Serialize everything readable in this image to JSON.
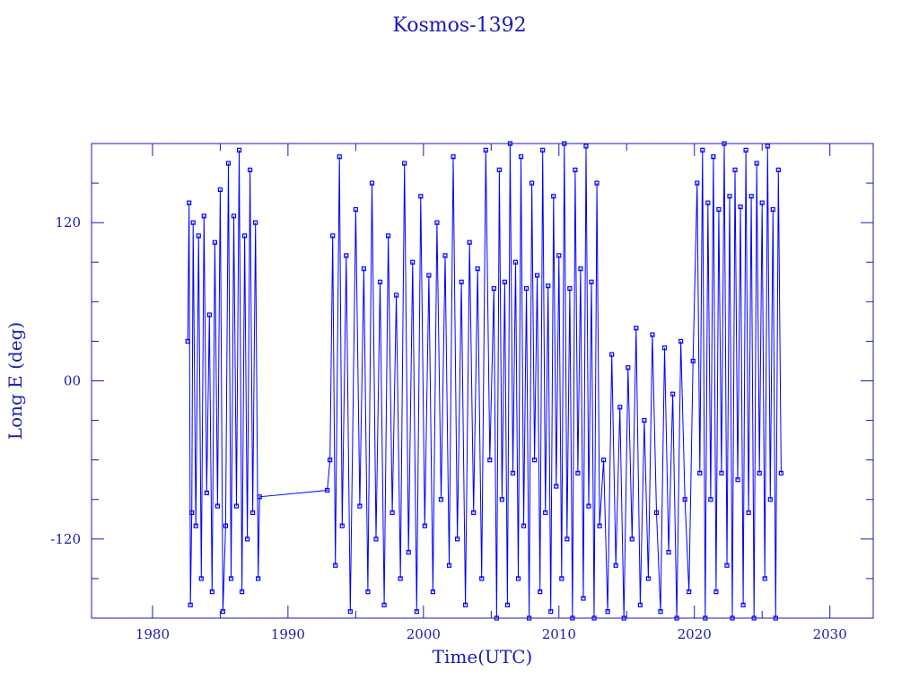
{
  "chart_data": {
    "type": "line",
    "title": "Kosmos-1392",
    "xlabel": "Time(UTC)",
    "ylabel": "Long E (deg)",
    "xlim": [
      1975.5,
      2033.2
    ],
    "ylim": [
      -180,
      180
    ],
    "xticks": [
      1980,
      1990,
      2000,
      2010,
      2020,
      2030
    ],
    "xtick_labels": [
      "1980",
      "1990",
      "2000",
      "2010",
      "2020",
      "2030"
    ],
    "yticks": [
      120,
      0,
      -120
    ],
    "ytick_labels": [
      "120",
      "00",
      "-120"
    ],
    "yminor_step": 30,
    "xminor_step": 5,
    "grid": false,
    "marker": "square",
    "color": "#0000ff",
    "axis_color": "#1a1ab4",
    "points": [
      [
        1982.6,
        30
      ],
      [
        1982.7,
        135
      ],
      [
        1982.8,
        -170
      ],
      [
        1982.9,
        -100
      ],
      [
        1983.0,
        120
      ],
      [
        1983.2,
        -110
      ],
      [
        1983.4,
        110
      ],
      [
        1983.6,
        -150
      ],
      [
        1983.8,
        125
      ],
      [
        1984.0,
        -85
      ],
      [
        1984.2,
        50
      ],
      [
        1984.4,
        -160
      ],
      [
        1984.6,
        105
      ],
      [
        1984.8,
        -95
      ],
      [
        1985.0,
        145
      ],
      [
        1985.2,
        -175
      ],
      [
        1985.4,
        -110
      ],
      [
        1985.6,
        165
      ],
      [
        1985.8,
        -150
      ],
      [
        1986.0,
        125
      ],
      [
        1986.2,
        -95
      ],
      [
        1986.4,
        175
      ],
      [
        1986.6,
        -160
      ],
      [
        1986.8,
        110
      ],
      [
        1987.0,
        -120
      ],
      [
        1987.2,
        160
      ],
      [
        1987.4,
        -100
      ],
      [
        1987.6,
        120
      ],
      [
        1987.8,
        -150
      ],
      [
        1987.9,
        -88
      ],
      [
        1992.9,
        -83
      ],
      [
        1993.1,
        -60
      ],
      [
        1993.3,
        110
      ],
      [
        1993.5,
        -140
      ],
      [
        1993.8,
        170
      ],
      [
        1994.0,
        -110
      ],
      [
        1994.3,
        95
      ],
      [
        1994.6,
        -175
      ],
      [
        1995.0,
        130
      ],
      [
        1995.3,
        -95
      ],
      [
        1995.6,
        85
      ],
      [
        1995.9,
        -160
      ],
      [
        1996.2,
        150
      ],
      [
        1996.5,
        -120
      ],
      [
        1996.8,
        75
      ],
      [
        1997.1,
        -170
      ],
      [
        1997.4,
        110
      ],
      [
        1997.7,
        -100
      ],
      [
        1998.0,
        65
      ],
      [
        1998.3,
        -150
      ],
      [
        1998.6,
        165
      ],
      [
        1998.9,
        -130
      ],
      [
        1999.2,
        90
      ],
      [
        1999.5,
        -175
      ],
      [
        1999.8,
        140
      ],
      [
        2000.1,
        -110
      ],
      [
        2000.4,
        80
      ],
      [
        2000.7,
        -160
      ],
      [
        2001.0,
        120
      ],
      [
        2001.3,
        -90
      ],
      [
        2001.6,
        95
      ],
      [
        2001.9,
        -140
      ],
      [
        2002.2,
        170
      ],
      [
        2002.5,
        -120
      ],
      [
        2002.8,
        75
      ],
      [
        2003.1,
        -170
      ],
      [
        2003.4,
        105
      ],
      [
        2003.7,
        -100
      ],
      [
        2004.0,
        85
      ],
      [
        2004.3,
        -150
      ],
      [
        2004.6,
        175
      ],
      [
        2004.9,
        -60
      ],
      [
        2005.2,
        70
      ],
      [
        2005.4,
        -180
      ],
      [
        2005.6,
        160
      ],
      [
        2005.8,
        -90
      ],
      [
        2006.0,
        75
      ],
      [
        2006.2,
        -170
      ],
      [
        2006.4,
        180
      ],
      [
        2006.6,
        -70
      ],
      [
        2006.8,
        90
      ],
      [
        2007.0,
        -150
      ],
      [
        2007.2,
        170
      ],
      [
        2007.4,
        -110
      ],
      [
        2007.6,
        70
      ],
      [
        2007.8,
        -180
      ],
      [
        2008.0,
        150
      ],
      [
        2008.2,
        -60
      ],
      [
        2008.4,
        80
      ],
      [
        2008.6,
        -160
      ],
      [
        2008.8,
        175
      ],
      [
        2009.0,
        -100
      ],
      [
        2009.2,
        72
      ],
      [
        2009.4,
        -175
      ],
      [
        2009.6,
        140
      ],
      [
        2009.8,
        -80
      ],
      [
        2010.0,
        95
      ],
      [
        2010.2,
        -150
      ],
      [
        2010.4,
        180
      ],
      [
        2010.6,
        -120
      ],
      [
        2010.8,
        70
      ],
      [
        2011.0,
        -180
      ],
      [
        2011.2,
        160
      ],
      [
        2011.4,
        -70
      ],
      [
        2011.6,
        85
      ],
      [
        2011.8,
        -165
      ],
      [
        2012.0,
        178
      ],
      [
        2012.2,
        -95
      ],
      [
        2012.4,
        75
      ],
      [
        2012.6,
        -180
      ],
      [
        2012.8,
        150
      ],
      [
        2013.0,
        -110
      ],
      [
        2013.3,
        -60
      ],
      [
        2013.6,
        -175
      ],
      [
        2013.9,
        20
      ],
      [
        2014.2,
        -140
      ],
      [
        2014.5,
        -20
      ],
      [
        2014.8,
        -180
      ],
      [
        2015.1,
        10
      ],
      [
        2015.4,
        -120
      ],
      [
        2015.7,
        40
      ],
      [
        2016.0,
        -170
      ],
      [
        2016.3,
        -30
      ],
      [
        2016.6,
        -150
      ],
      [
        2016.9,
        35
      ],
      [
        2017.2,
        -100
      ],
      [
        2017.5,
        -175
      ],
      [
        2017.8,
        25
      ],
      [
        2018.1,
        -130
      ],
      [
        2018.4,
        -10
      ],
      [
        2018.7,
        -180
      ],
      [
        2019.0,
        30
      ],
      [
        2019.3,
        -90
      ],
      [
        2019.6,
        -160
      ],
      [
        2019.9,
        15
      ],
      [
        2020.2,
        150
      ],
      [
        2020.4,
        -70
      ],
      [
        2020.6,
        175
      ],
      [
        2020.8,
        -180
      ],
      [
        2021.0,
        135
      ],
      [
        2021.2,
        -90
      ],
      [
        2021.4,
        170
      ],
      [
        2021.6,
        -160
      ],
      [
        2021.8,
        130
      ],
      [
        2022.0,
        -70
      ],
      [
        2022.2,
        180
      ],
      [
        2022.4,
        -140
      ],
      [
        2022.6,
        140
      ],
      [
        2022.8,
        -180
      ],
      [
        2023.0,
        160
      ],
      [
        2023.2,
        -75
      ],
      [
        2023.4,
        132
      ],
      [
        2023.6,
        -170
      ],
      [
        2023.8,
        175
      ],
      [
        2024.0,
        -100
      ],
      [
        2024.2,
        140
      ],
      [
        2024.4,
        -180
      ],
      [
        2024.6,
        165
      ],
      [
        2024.8,
        -70
      ],
      [
        2025.0,
        135
      ],
      [
        2025.2,
        -150
      ],
      [
        2025.4,
        178
      ],
      [
        2025.6,
        -90
      ],
      [
        2025.8,
        130
      ],
      [
        2026.0,
        -180
      ],
      [
        2026.2,
        160
      ],
      [
        2026.4,
        -70
      ]
    ]
  }
}
